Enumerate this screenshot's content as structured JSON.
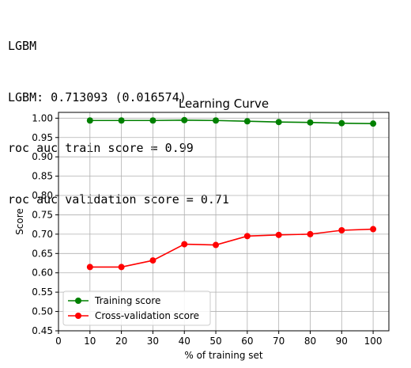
{
  "console": {
    "lines": [
      "LGBM",
      "LGBM: 0.713093 (0.016574)",
      "roc auc train score = 0.99",
      "roc auc validation score = 0.71"
    ]
  },
  "colors": {
    "training": "#008000",
    "validation": "#ff0000",
    "grid": "#b0b0b0",
    "frame": "#000000",
    "background": "#ffffff"
  },
  "chart_data": {
    "type": "line",
    "title": "Learning Curve",
    "xlabel": "% of training set",
    "ylabel": "Score",
    "xlim": [
      0,
      105
    ],
    "ylim": [
      0.45,
      1.015
    ],
    "xticks": [
      0,
      10,
      20,
      30,
      40,
      50,
      60,
      70,
      80,
      90,
      100
    ],
    "xtick_labels": [
      "0",
      "10",
      "20",
      "30",
      "40",
      "50",
      "60",
      "70",
      "80",
      "90",
      "100"
    ],
    "yticks": [
      0.45,
      0.5,
      0.55,
      0.6,
      0.65,
      0.7,
      0.75,
      0.8,
      0.85,
      0.9,
      0.95,
      1.0
    ],
    "ytick_labels": [
      "0.45",
      "0.50",
      "0.55",
      "0.60",
      "0.65",
      "0.70",
      "0.75",
      "0.80",
      "0.85",
      "0.90",
      "0.95",
      "1.00"
    ],
    "grid": true,
    "legend": "lower-left",
    "x": [
      10,
      20,
      30,
      40,
      50,
      60,
      70,
      80,
      90,
      100
    ],
    "series": [
      {
        "name": "Training score",
        "color": "#008000",
        "marker": "circle",
        "values": [
          0.994,
          0.994,
          0.994,
          0.995,
          0.994,
          0.992,
          0.99,
          0.989,
          0.987,
          0.986
        ]
      },
      {
        "name": "Cross-validation score",
        "color": "#ff0000",
        "marker": "circle",
        "values": [
          0.615,
          0.615,
          0.632,
          0.674,
          0.672,
          0.695,
          0.698,
          0.7,
          0.71,
          0.713
        ]
      }
    ]
  }
}
